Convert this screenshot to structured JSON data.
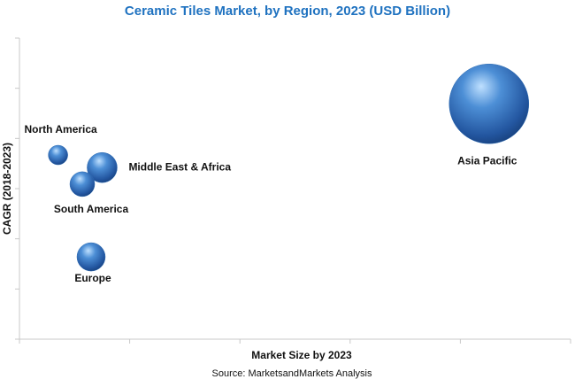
{
  "chart_data": {
    "type": "bubble",
    "title": "Ceramic Tiles Market, by Region, 2023 (USD Billion)",
    "x_label": "Market Size by 2023",
    "y_label": "CAGR (2018-2023)",
    "source": "Source: MarketsandMarkets Analysis",
    "categories": [
      "North America",
      "Middle East & Africa",
      "South America",
      "Europe",
      "Asia Pacific"
    ],
    "x": [
      0.35,
      0.75,
      0.57,
      0.65,
      4.26
    ],
    "values": [
      3.67,
      3.42,
      3.09,
      1.64,
      4.69
    ],
    "sizes": [
      11,
      17,
      14,
      16,
      45
    ],
    "color": "#2e6db4",
    "xlim": [
      0,
      5
    ],
    "xticks": [
      0,
      1,
      2,
      3,
      4,
      5
    ],
    "ylim": [
      0,
      6
    ],
    "yticks": [
      0,
      1,
      2,
      3,
      4,
      5,
      6
    ]
  }
}
